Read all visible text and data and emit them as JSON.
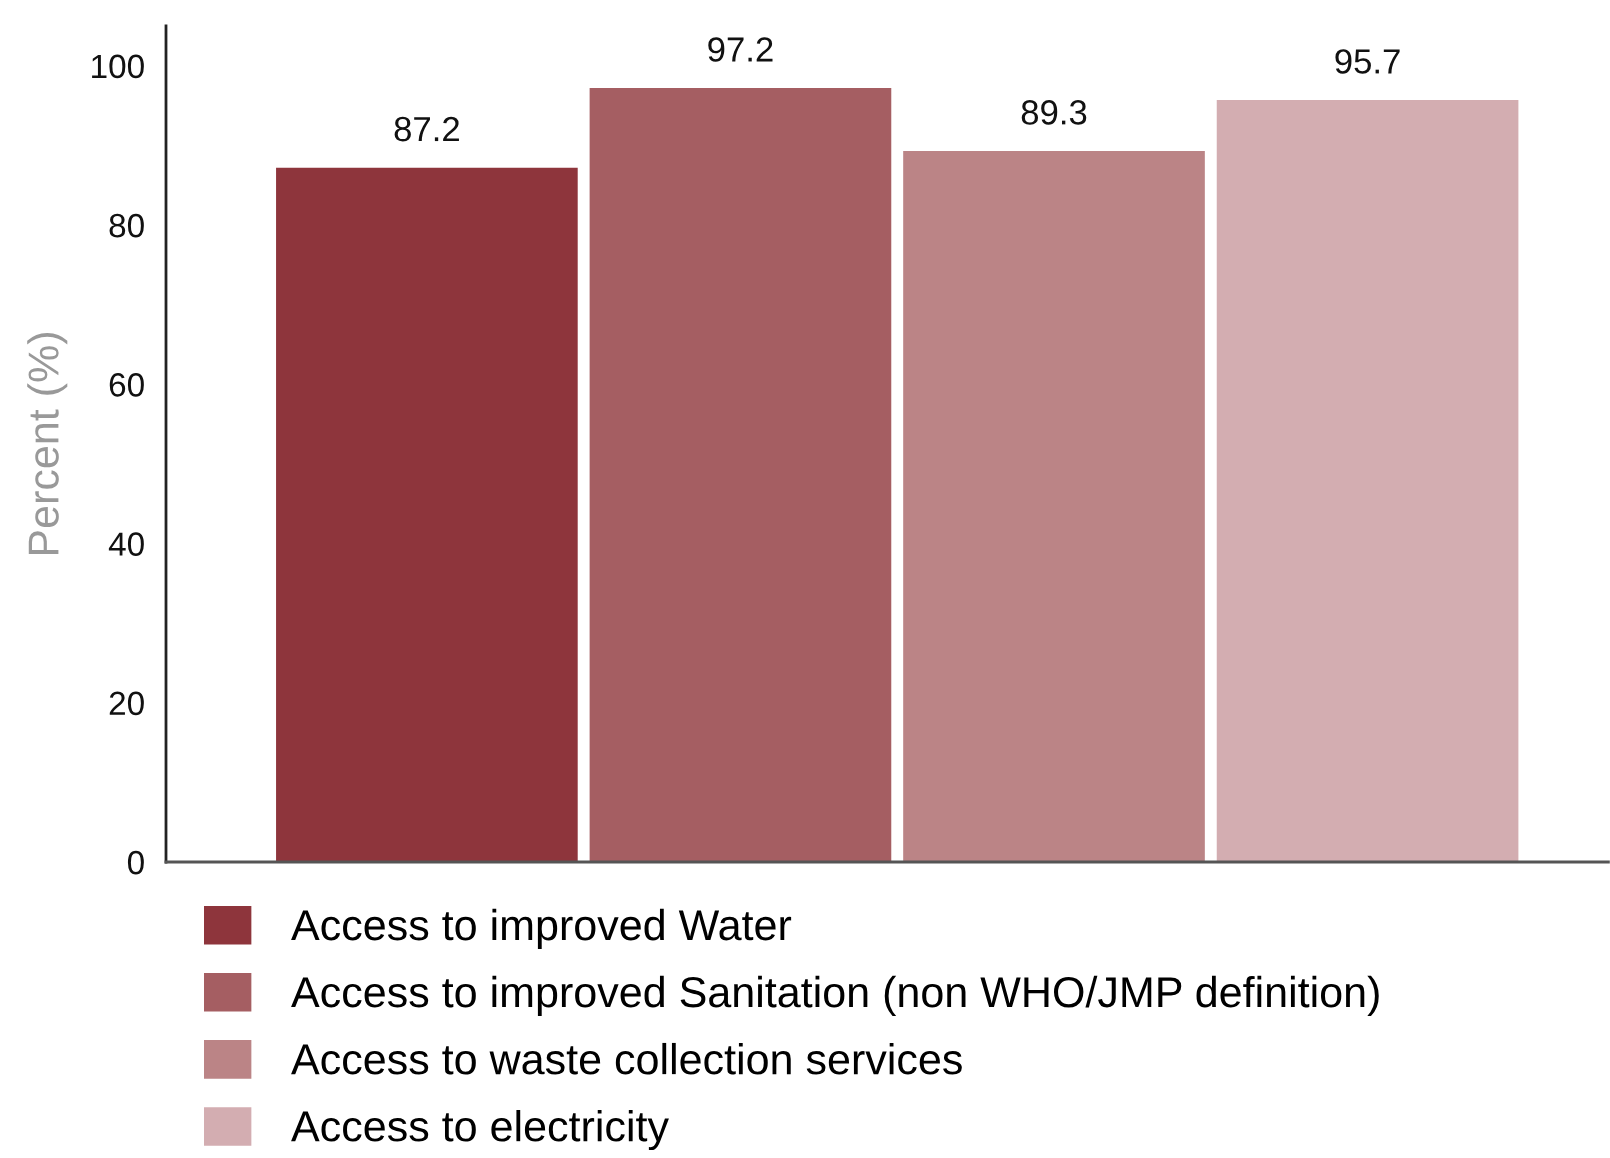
{
  "chart_data": {
    "type": "bar",
    "ylabel": "Percent (%)",
    "categories": [
      null
    ],
    "series": [
      {
        "name": "Access to improved Water",
        "color": "#8e353c",
        "values": [
          87.2
        ]
      },
      {
        "name": "Access to improved Sanitation (non WHO/JMP definition)",
        "color": "#a55e62",
        "values": [
          97.2
        ]
      },
      {
        "name": "Access to waste collection services",
        "color": "#bb8486",
        "values": [
          89.3
        ]
      },
      {
        "name": "Access to electricity",
        "color": "#d3adb1",
        "values": [
          95.7
        ]
      }
    ],
    "ylim": [
      0,
      105
    ],
    "yticks": [
      0,
      20,
      40,
      60,
      80,
      100
    ],
    "grid": false,
    "legend": "bottom",
    "data_labels": true,
    "tick_labels": "y"
  }
}
